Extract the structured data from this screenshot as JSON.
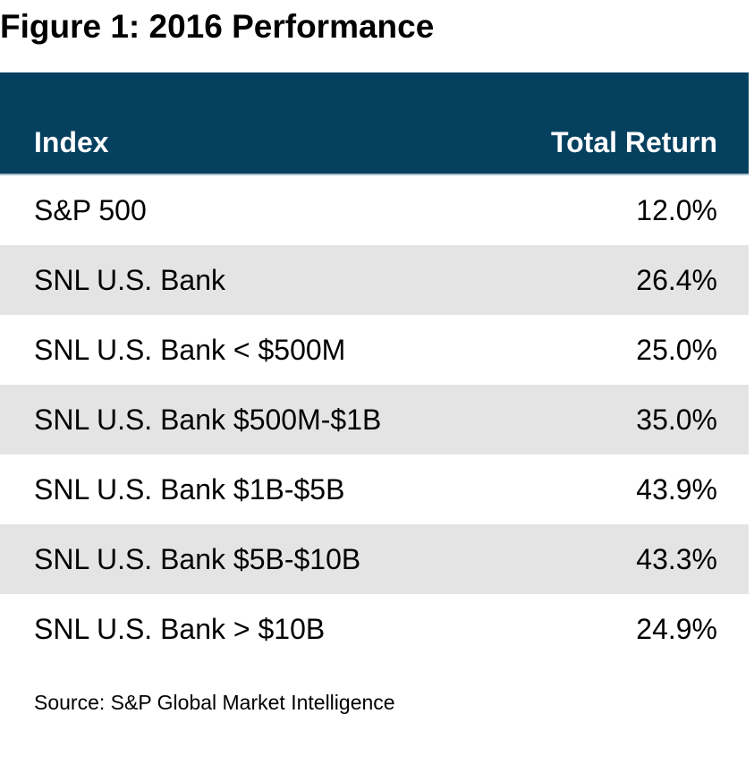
{
  "figure": {
    "title": "Figure 1: 2016 Performance",
    "source": "Source: S&P Global Market Intelligence"
  },
  "table": {
    "header": {
      "index_label": "Index",
      "return_label": "Total Return"
    },
    "rows": [
      {
        "index": "S&P 500",
        "total_return": "12.0%"
      },
      {
        "index": "SNL U.S. Bank",
        "total_return": "26.4%"
      },
      {
        "index": "SNL U.S. Bank < $500M",
        "total_return": "25.0%"
      },
      {
        "index": "SNL U.S. Bank $500M-$1B",
        "total_return": "35.0%"
      },
      {
        "index": "SNL U.S. Bank $1B-$5B",
        "total_return": "43.9%"
      },
      {
        "index": "SNL U.S. Bank $5B-$10B",
        "total_return": "43.3%"
      },
      {
        "index": "SNL U.S. Bank > $10B",
        "total_return": "24.9%"
      }
    ]
  },
  "colors": {
    "header_bg": "#05405f",
    "header_text": "#ffffff",
    "header_underline": "#a9bfcc",
    "row_alt_bg": "#e4e4e5",
    "text": "#000000"
  },
  "chart_data": {
    "type": "table",
    "title": "Figure 1: 2016 Performance",
    "columns": [
      "Index",
      "Total Return"
    ],
    "categories": [
      "S&P 500",
      "SNL U.S. Bank",
      "SNL U.S. Bank < $500M",
      "SNL U.S. Bank $500M-$1B",
      "SNL U.S. Bank $1B-$5B",
      "SNL U.S. Bank $5B-$10B",
      "SNL U.S. Bank > $10B"
    ],
    "values_pct": [
      12.0,
      26.4,
      25.0,
      35.0,
      43.9,
      43.3,
      24.9
    ],
    "source": "Source: S&P Global Market Intelligence"
  }
}
